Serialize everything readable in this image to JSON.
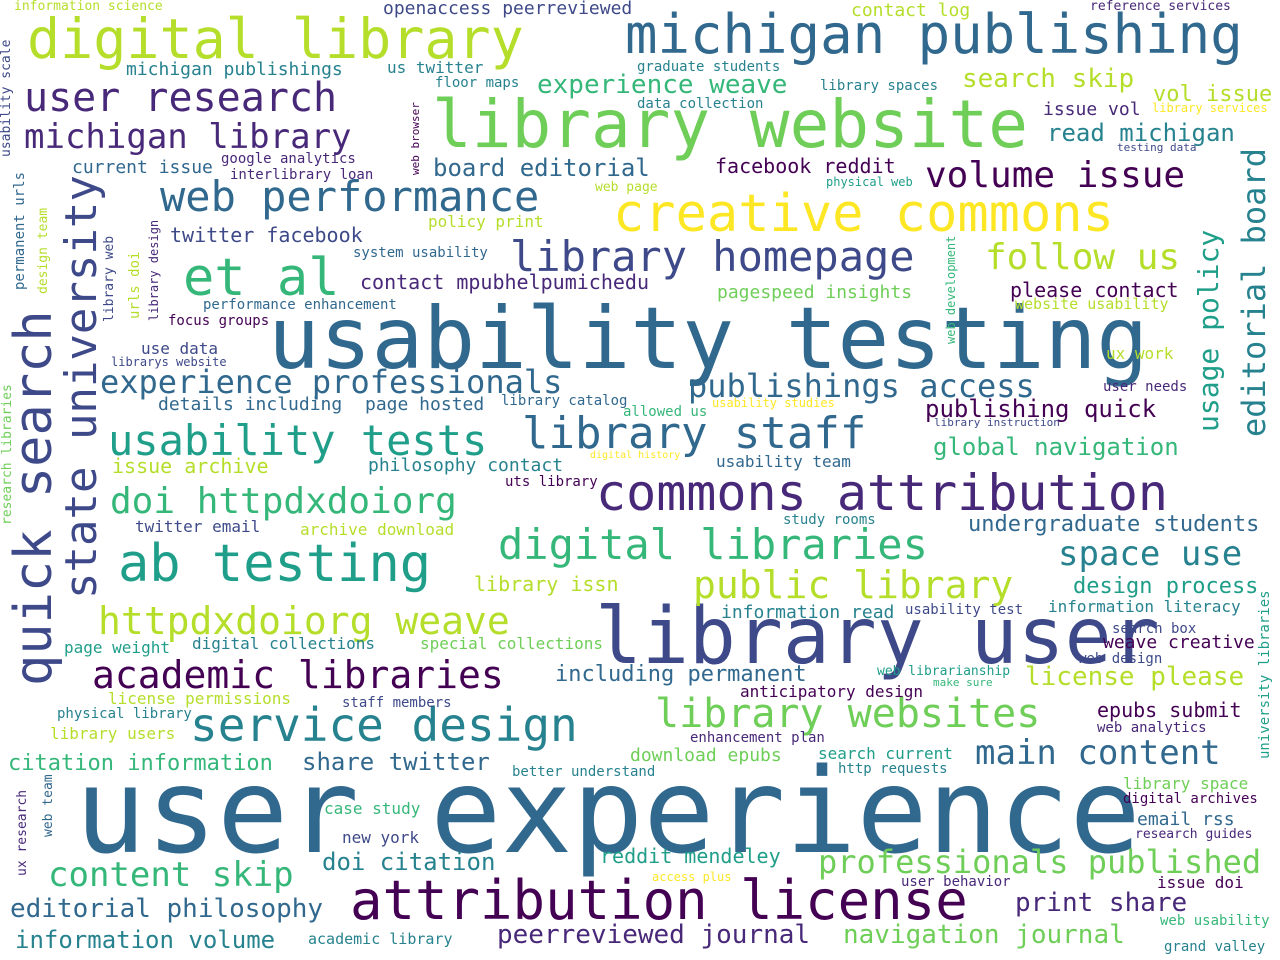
{
  "colors": {
    "background": "#ffffff",
    "palette": [
      "#440154",
      "#482878",
      "#3e4989",
      "#31688e",
      "#26828e",
      "#1f9e89",
      "#35b779",
      "#6ece58",
      "#b5de2b",
      "#fde725"
    ]
  },
  "words": [
    {
      "text": "user experience",
      "color": "#31688e"
    },
    {
      "text": "usability testing",
      "color": "#31688e"
    },
    {
      "text": "library user",
      "color": "#3e4989"
    },
    {
      "text": "library website",
      "color": "#6ece58"
    },
    {
      "text": "michigan publishing",
      "color": "#31688e"
    },
    {
      "text": "digital library",
      "color": "#b5de2b"
    },
    {
      "text": "creative commons",
      "color": "#fde725"
    },
    {
      "text": "commons attribution",
      "color": "#482878"
    },
    {
      "text": "attribution license",
      "color": "#440154"
    },
    {
      "text": "quick search",
      "color": "#3e4989"
    },
    {
      "text": "state university",
      "color": "#3e4989"
    },
    {
      "text": "ab testing",
      "color": "#1f9e89"
    },
    {
      "text": "et al",
      "color": "#35b779"
    },
    {
      "text": "web performance",
      "color": "#31688e"
    },
    {
      "text": "library homepage",
      "color": "#3e4989"
    },
    {
      "text": "library staff",
      "color": "#31688e"
    },
    {
      "text": "service design",
      "color": "#26828e"
    },
    {
      "text": "usability tests",
      "color": "#1f9e89"
    },
    {
      "text": "digital libraries",
      "color": "#35b779"
    },
    {
      "text": "library websites",
      "color": "#6ece58"
    },
    {
      "text": "academic libraries",
      "color": "#440154"
    },
    {
      "text": "httpdxdoiorg weave",
      "color": "#b5de2b"
    },
    {
      "text": "public library",
      "color": "#b5de2b"
    },
    {
      "text": "user research",
      "color": "#482878"
    },
    {
      "text": "michigan library",
      "color": "#482878"
    },
    {
      "text": "volume issue",
      "color": "#440154"
    },
    {
      "text": "doi httpdxdoiorg",
      "color": "#35b779"
    },
    {
      "text": "experience professionals",
      "color": "#31688e"
    },
    {
      "text": "editorial board",
      "color": "#26828e"
    },
    {
      "text": "follow us",
      "color": "#b5de2b"
    },
    {
      "text": "main content",
      "color": "#31688e"
    },
    {
      "text": "content skip",
      "color": "#35b779"
    },
    {
      "text": "professionals published",
      "color": "#6ece58"
    },
    {
      "text": "publishings access",
      "color": "#31688e"
    },
    {
      "text": "space use",
      "color": "#26828e"
    },
    {
      "text": "usage policy",
      "color": "#1f9e89"
    },
    {
      "text": "editorial philosophy",
      "color": "#31688e"
    },
    {
      "text": "peerreviewed journal",
      "color": "#482878"
    },
    {
      "text": "navigation journal",
      "color": "#6ece58"
    },
    {
      "text": "print share",
      "color": "#482878"
    },
    {
      "text": "information volume",
      "color": "#26828e"
    },
    {
      "text": "experience weave",
      "color": "#35b779"
    },
    {
      "text": "search skip",
      "color": "#b5de2b"
    },
    {
      "text": "license please",
      "color": "#b5de2b"
    },
    {
      "text": "publishing quick",
      "color": "#440154"
    },
    {
      "text": "global navigation",
      "color": "#35b779"
    },
    {
      "text": "share twitter",
      "color": "#31688e"
    },
    {
      "text": "doi citation",
      "color": "#26828e"
    },
    {
      "text": "board editorial",
      "color": "#31688e"
    },
    {
      "text": "read michigan",
      "color": "#26828e"
    },
    {
      "text": "vol issue",
      "color": "#b5de2b"
    },
    {
      "text": "undergraduate students",
      "color": "#31688e"
    },
    {
      "text": "design process",
      "color": "#1f9e89"
    },
    {
      "text": "including permanent",
      "color": "#31688e"
    },
    {
      "text": "twitter facebook",
      "color": "#3e4989"
    },
    {
      "text": "facebook reddit",
      "color": "#440154"
    },
    {
      "text": "citation information",
      "color": "#35b779"
    },
    {
      "text": "reddit mendeley",
      "color": "#1f9e89"
    },
    {
      "text": "please contact",
      "color": "#440154"
    },
    {
      "text": "epubs submit",
      "color": "#440154"
    },
    {
      "text": "contact mpubhelpumichedu",
      "color": "#482878"
    },
    {
      "text": "philosophy contact",
      "color": "#26828e"
    },
    {
      "text": "details including",
      "color": "#31688e"
    },
    {
      "text": "page hosted",
      "color": "#31688e"
    },
    {
      "text": "issue archive",
      "color": "#b5de2b"
    },
    {
      "text": "current issue",
      "color": "#31688e"
    },
    {
      "text": "download epubs",
      "color": "#6ece58"
    },
    {
      "text": "email rss",
      "color": "#31688e"
    },
    {
      "text": "issue doi",
      "color": "#440154"
    },
    {
      "text": "issue vol",
      "color": "#482878"
    },
    {
      "text": "michigan publishings",
      "color": "#26828e"
    },
    {
      "text": "openaccess peerreviewed",
      "color": "#3e4989"
    },
    {
      "text": "contact log",
      "color": "#b5de2b"
    },
    {
      "text": "us twitter",
      "color": "#26828e"
    },
    {
      "text": "floor maps",
      "color": "#26828e"
    },
    {
      "text": "graduate students",
      "color": "#26828e"
    },
    {
      "text": "library spaces",
      "color": "#26828e"
    },
    {
      "text": "library services",
      "color": "#fde725"
    },
    {
      "text": "data collection",
      "color": "#26828e"
    },
    {
      "text": "testing data",
      "color": "#3e4989"
    },
    {
      "text": "google analytics",
      "color": "#482878"
    },
    {
      "text": "interlibrary loan",
      "color": "#482878"
    },
    {
      "text": "physical web",
      "color": "#1f9e89"
    },
    {
      "text": "web page",
      "color": "#b5de2b"
    },
    {
      "text": "policy print",
      "color": "#b5de2b"
    },
    {
      "text": "system usability",
      "color": "#31688e"
    },
    {
      "text": "performance enhancement",
      "color": "#31688e"
    },
    {
      "text": "focus groups",
      "color": "#440154"
    },
    {
      "text": "use data",
      "color": "#3e4989"
    },
    {
      "text": "librarys website",
      "color": "#3e4989"
    },
    {
      "text": "pagespeed insights",
      "color": "#6ece58"
    },
    {
      "text": "website usability",
      "color": "#b5de2b"
    },
    {
      "text": "ux work",
      "color": "#b5de2b"
    },
    {
      "text": "user needs",
      "color": "#482878"
    },
    {
      "text": "library catalog",
      "color": "#31688e"
    },
    {
      "text": "allowed us",
      "color": "#35b779"
    },
    {
      "text": "usability studies",
      "color": "#fde725"
    },
    {
      "text": "library instruction",
      "color": "#3e4989"
    },
    {
      "text": "digital history",
      "color": "#fde725"
    },
    {
      "text": "usability team",
      "color": "#31688e"
    },
    {
      "text": "uts library",
      "color": "#440154"
    },
    {
      "text": "study rooms",
      "color": "#26828e"
    },
    {
      "text": "twitter email",
      "color": "#3e4989"
    },
    {
      "text": "archive download",
      "color": "#b5de2b"
    },
    {
      "text": "library issn",
      "color": "#b5de2b"
    },
    {
      "text": "information read",
      "color": "#26828e"
    },
    {
      "text": "usability test",
      "color": "#3e4989"
    },
    {
      "text": "information literacy",
      "color": "#26828e"
    },
    {
      "text": "page weight",
      "color": "#1f9e89"
    },
    {
      "text": "digital collections",
      "color": "#26828e"
    },
    {
      "text": "special collections",
      "color": "#6ece58"
    },
    {
      "text": "search box",
      "color": "#3e4989"
    },
    {
      "text": "weave creative",
      "color": "#440154"
    },
    {
      "text": "web design",
      "color": "#3e4989"
    },
    {
      "text": "web librarianship",
      "color": "#1f9e89"
    },
    {
      "text": "make sure",
      "color": "#35b779"
    },
    {
      "text": "anticipatory design",
      "color": "#440154"
    },
    {
      "text": "license permissions",
      "color": "#b5de2b"
    },
    {
      "text": "staff members",
      "color": "#3e4989"
    },
    {
      "text": "physical library",
      "color": "#26828e"
    },
    {
      "text": "library users",
      "color": "#b5de2b"
    },
    {
      "text": "enhancement plan",
      "color": "#482878"
    },
    {
      "text": "web analytics",
      "color": "#482878"
    },
    {
      "text": "search current",
      "color": "#1f9e89"
    },
    {
      "text": "http requests",
      "color": "#26828e"
    },
    {
      "text": "better understand",
      "color": "#26828e"
    },
    {
      "text": "library space",
      "color": "#6ece58"
    },
    {
      "text": "digital archives",
      "color": "#440154"
    },
    {
      "text": "case study",
      "color": "#35b779"
    },
    {
      "text": "new york",
      "color": "#3e4989"
    },
    {
      "text": "research guides",
      "color": "#482878"
    },
    {
      "text": "access plus",
      "color": "#fde725"
    },
    {
      "text": "user behavior",
      "color": "#482878"
    },
    {
      "text": "web usability",
      "color": "#35b779"
    },
    {
      "text": "grand valley",
      "color": "#26828e"
    },
    {
      "text": "academic library",
      "color": "#26828e"
    },
    {
      "text": "information science",
      "color": "#b5de2b"
    },
    {
      "text": "reference services",
      "color": "#482878"
    },
    {
      "text": "usability scale",
      "color": "#3e4989"
    },
    {
      "text": "permanent urls",
      "color": "#31688e"
    },
    {
      "text": "design team",
      "color": "#b5de2b"
    },
    {
      "text": "library web",
      "color": "#3e4989"
    },
    {
      "text": "urls doi",
      "color": "#b5de2b"
    },
    {
      "text": "library design",
      "color": "#482878"
    },
    {
      "text": "web browser",
      "color": "#440154"
    },
    {
      "text": "web development",
      "color": "#35b779"
    },
    {
      "text": "university libraries",
      "color": "#1f9e89"
    },
    {
      "text": "research libraries",
      "color": "#6ece58"
    },
    {
      "text": "ux research",
      "color": "#482878"
    },
    {
      "text": "web team",
      "color": "#31688e"
    }
  ]
}
